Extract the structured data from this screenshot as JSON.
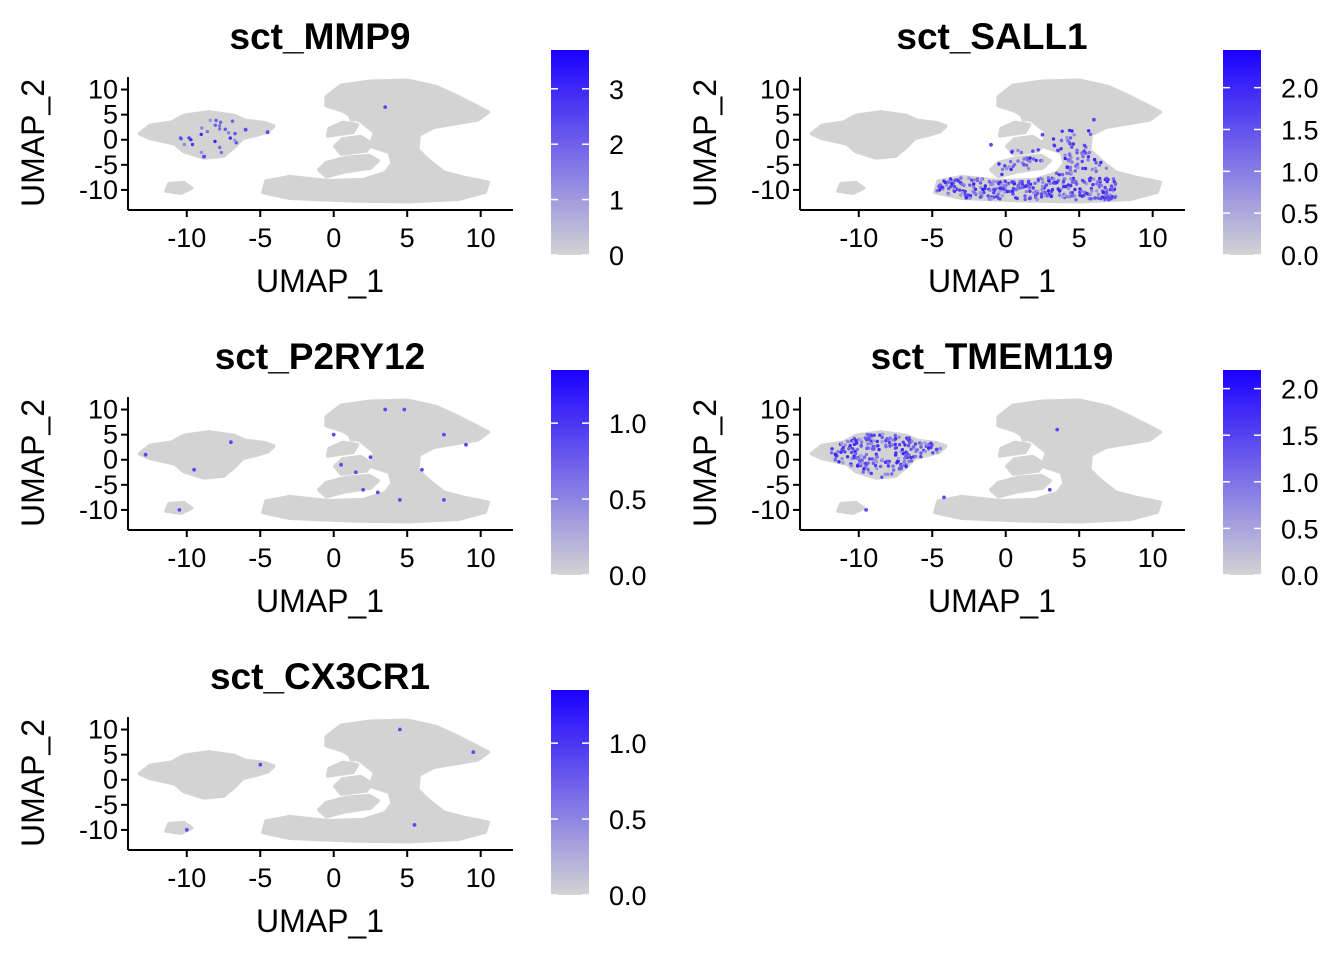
{
  "chart_data": [
    {
      "type": "scatter",
      "title": "sct_MMP9",
      "xlabel": "UMAP_1",
      "ylabel": "UMAP_2",
      "xlim": [
        -14,
        12.2
      ],
      "ylim": [
        -14,
        12.5
      ],
      "xticks": [
        -10,
        -5,
        0,
        5,
        10
      ],
      "yticks": [
        10,
        5,
        0,
        -5,
        -10
      ],
      "colorbar": {
        "min": 0,
        "max": 3.7,
        "ticks": [
          0,
          1,
          2,
          3
        ],
        "tick_labels": [
          "0",
          "1",
          "2",
          "3"
        ],
        "low_color": "#d3d3d3",
        "high_color": "#1a00ff"
      },
      "highlight": {
        "clusters": [
          {
            "x": [
              -10.5,
              -6.5
            ],
            "y": [
              -4,
              4
            ],
            "n": 28
          }
        ],
        "scattered": [
          [
            -4.5,
            1.5
          ],
          [
            3.5,
            6.5
          ],
          [
            -6,
            2
          ]
        ]
      },
      "grid": false
    },
    {
      "type": "scatter",
      "title": "sct_SALL1",
      "xlabel": "UMAP_1",
      "ylabel": "UMAP_2",
      "xlim": [
        -14,
        12.2
      ],
      "ylim": [
        -14,
        12.5
      ],
      "xticks": [
        -10,
        -5,
        0,
        5,
        10
      ],
      "yticks": [
        10,
        5,
        0,
        -5,
        -10
      ],
      "colorbar": {
        "min": 0,
        "max": 2.45,
        "ticks": [
          0,
          0.5,
          1,
          1.5,
          2
        ],
        "tick_labels": [
          "0.0",
          "0.5",
          "1.0",
          "1.5",
          "2.0"
        ],
        "low_color": "#d3d3d3",
        "high_color": "#1a00ff"
      },
      "highlight": {
        "clusters": [
          {
            "x": [
              -4.8,
              7.5
            ],
            "y": [
              -12,
              -7.5
            ],
            "n": 320
          },
          {
            "x": [
              -0.5,
              7
            ],
            "y": [
              -7,
              -2
            ],
            "n": 80
          },
          {
            "x": [
              3,
              6
            ],
            "y": [
              -2,
              2
            ],
            "n": 20
          }
        ],
        "scattered": [
          [
            -1,
            -1
          ],
          [
            2.5,
            1
          ],
          [
            6,
            4
          ]
        ]
      },
      "grid": false
    },
    {
      "type": "scatter",
      "title": "sct_P2RY12",
      "xlabel": "UMAP_1",
      "ylabel": "UMAP_2",
      "xlim": [
        -14,
        12.2
      ],
      "ylim": [
        -14,
        12.5
      ],
      "xticks": [
        -10,
        -5,
        0,
        5,
        10
      ],
      "yticks": [
        10,
        5,
        0,
        -5,
        -10
      ],
      "colorbar": {
        "min": 0,
        "max": 1.35,
        "ticks": [
          0,
          0.5,
          1
        ],
        "tick_labels": [
          "0.0",
          "0.5",
          "1.0"
        ],
        "low_color": "#d3d3d3",
        "high_color": "#1a00ff"
      },
      "highlight": {
        "clusters": [],
        "scattered": [
          [
            -12.8,
            1
          ],
          [
            -10.5,
            -10
          ],
          [
            -7,
            3.5
          ],
          [
            -9.5,
            -2
          ],
          [
            0.5,
            -1
          ],
          [
            2,
            -6
          ],
          [
            3,
            -6.5
          ],
          [
            4.8,
            10
          ],
          [
            3.5,
            10
          ],
          [
            7.5,
            5
          ],
          [
            9,
            3
          ],
          [
            4.5,
            -8
          ],
          [
            7.5,
            -8
          ],
          [
            2.5,
            0.5
          ],
          [
            1.5,
            -2.5
          ],
          [
            6,
            -2
          ],
          [
            0,
            5
          ]
        ]
      },
      "grid": false
    },
    {
      "type": "scatter",
      "title": "sct_TMEM119",
      "xlabel": "UMAP_1",
      "ylabel": "UMAP_2",
      "xlim": [
        -14,
        12.2
      ],
      "ylim": [
        -14,
        12.5
      ],
      "xticks": [
        -10,
        -5,
        0,
        5,
        10
      ],
      "yticks": [
        10,
        5,
        0,
        -5,
        -10
      ],
      "colorbar": {
        "min": 0,
        "max": 2.2,
        "ticks": [
          0,
          0.5,
          1,
          1.5,
          2
        ],
        "tick_labels": [
          "0.0",
          "0.5",
          "1.0",
          "1.5",
          "2.0"
        ],
        "low_color": "#d3d3d3",
        "high_color": "#1a00ff"
      },
      "highlight": {
        "clusters": [
          {
            "x": [
              -12,
              -4
            ],
            "y": [
              -3.5,
              5.5
            ],
            "n": 230
          }
        ],
        "scattered": [
          [
            -4.2,
            -7.5
          ],
          [
            3,
            -6
          ],
          [
            3.5,
            6
          ],
          [
            -9.5,
            -10
          ]
        ]
      },
      "grid": false
    },
    {
      "type": "scatter",
      "title": "sct_CX3CR1",
      "xlabel": "UMAP_1",
      "ylabel": "UMAP_2",
      "xlim": [
        -14,
        12.2
      ],
      "ylim": [
        -14,
        12.5
      ],
      "xticks": [
        -10,
        -5,
        0,
        5,
        10
      ],
      "yticks": [
        10,
        5,
        0,
        -5,
        -10
      ],
      "colorbar": {
        "min": 0,
        "max": 1.35,
        "ticks": [
          0,
          0.5,
          1
        ],
        "tick_labels": [
          "0.0",
          "0.5",
          "1.0"
        ],
        "low_color": "#d3d3d3",
        "high_color": "#1a00ff"
      },
      "highlight": {
        "clusters": [],
        "scattered": [
          [
            -5,
            3
          ],
          [
            9.5,
            5.5
          ],
          [
            4.5,
            10
          ],
          [
            5.5,
            -9
          ],
          [
            -10,
            -10
          ]
        ]
      },
      "grid": false
    }
  ]
}
